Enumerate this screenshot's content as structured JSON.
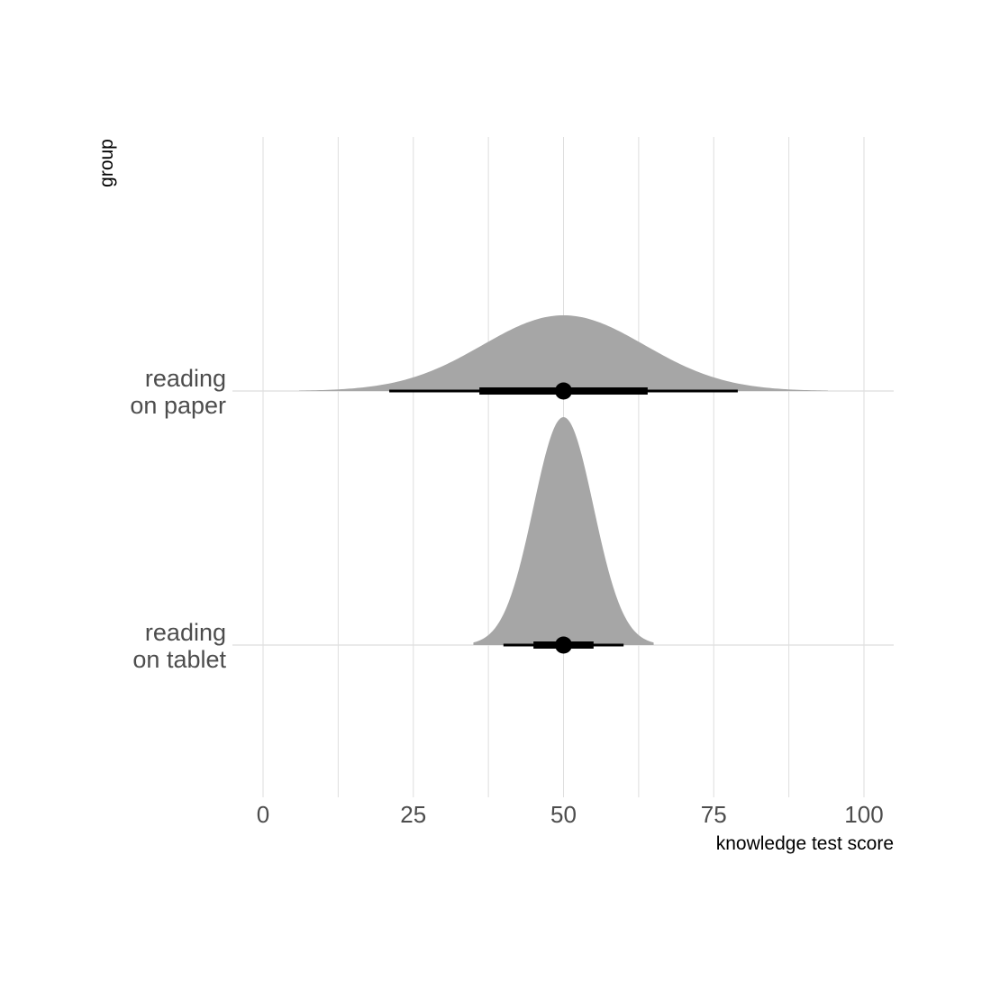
{
  "chart_data": {
    "type": "halfeye",
    "xlabel": "knowledge test score",
    "ylabel": "group",
    "xlim": [
      -4,
      104
    ],
    "x_ticks": [
      0,
      25,
      50,
      75,
      100
    ],
    "x_tick_labels": [
      "0",
      "25",
      "50",
      "75",
      "100"
    ],
    "grid": true,
    "colors": {
      "density_fill": "#a6a6a6",
      "interval": "#000000",
      "grid": "#dedede",
      "text": "#4d4d4d"
    },
    "groups": [
      {
        "label_lines": [
          "reading",
          "on paper"
        ],
        "distribution": {
          "mean": 50,
          "sd": 13.5,
          "from": 6,
          "to": 94
        },
        "point": 50,
        "interval_66": [
          36,
          64
        ],
        "interval_95": [
          21,
          79
        ]
      },
      {
        "label_lines": [
          "reading",
          "on tablet"
        ],
        "distribution": {
          "mean": 50,
          "sd": 5,
          "from": 35,
          "to": 65
        },
        "point": 50,
        "interval_66": [
          45,
          55
        ],
        "interval_95": [
          40,
          60
        ]
      }
    ]
  }
}
